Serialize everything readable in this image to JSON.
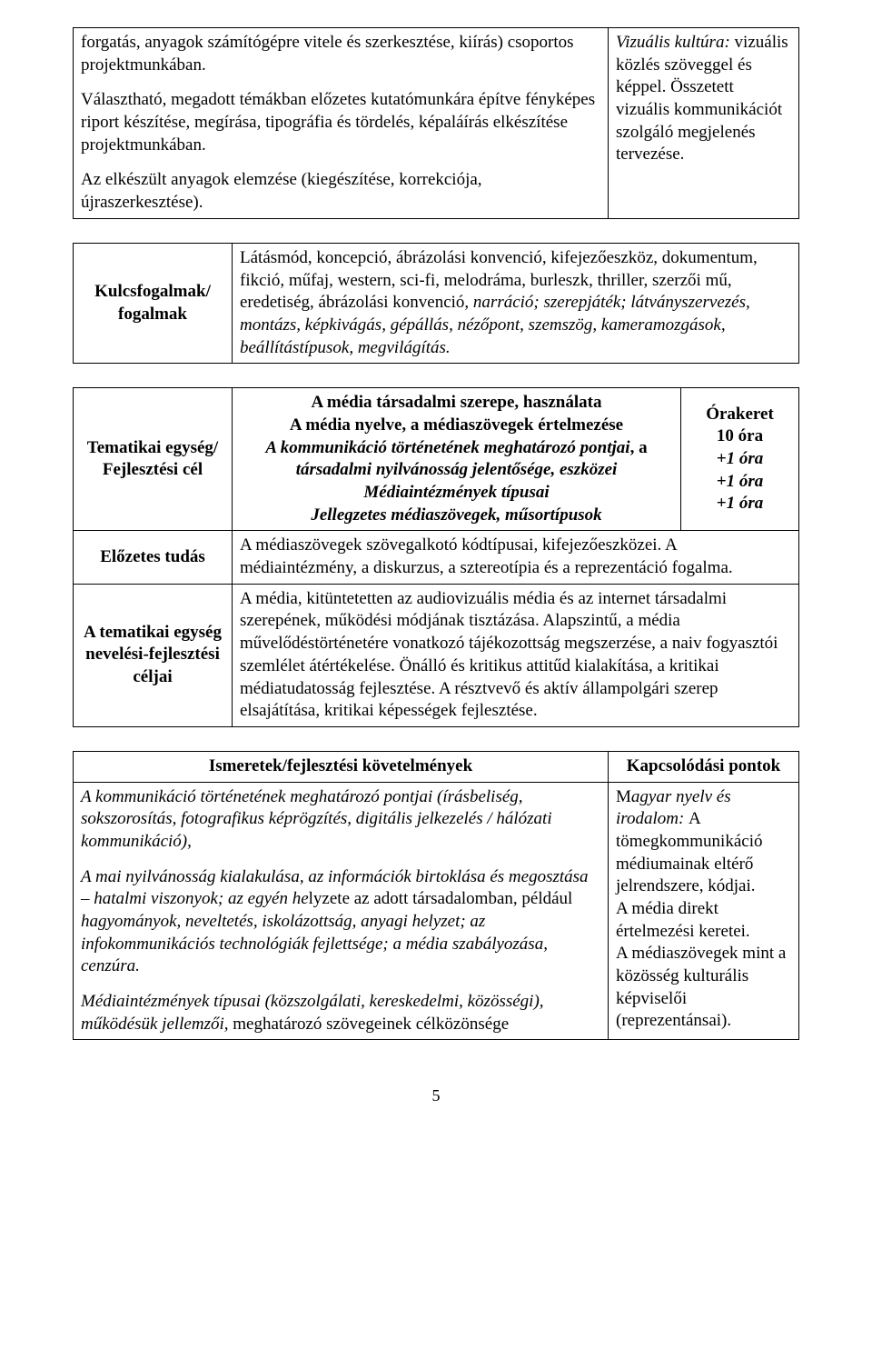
{
  "table1": {
    "left": {
      "p1": "forgatás, anyagok számítógépre vitele és szerkesztése, kiírás) csoportos projektmunkában.",
      "p2": "Választható, megadott témákban előzetes kutatómunkára építve fényképes riport készítése, megírása, tipográfia és tördelés, képaláírás elkészítése projektmunkában.",
      "p3": "Az elkészült anyagok elemzése (kiegészítése, korrekciója, újraszerkesztése)."
    },
    "right": {
      "p1a": "Vizuális kultúra:",
      "p1b": " vizuális közlés szöveggel és képpel. Összetett vizuális kommunikációt szolgáló megjelenés tervezése."
    }
  },
  "table2": {
    "label": "Kulcsfogalmak/ fogalmak",
    "content_a": "Látásmód, koncepció, ábrázolási konvenció, kifejezőeszköz, dokumentum, fikció, műfaj, western, sci-fi, melodráma, burleszk, thriller, szerzői mű, eredetiség, ábrázolási konvenció, ",
    "content_b": "narráció; szerepjáték; látványszervezés, montázs, képkivágás, gépállás, nézőpont, szemszög, kameramozgások, beállítástípusok, megvilágítás."
  },
  "table3": {
    "rows": [
      {
        "label": "Tematikai egység/ Fejlesztési cél",
        "mid": {
          "l1": "A média társadalmi szerepe, használata",
          "l2": "A média nyelve, a médiaszövegek értelmezése",
          "l3a": "A kommunikáció történetének meghatározó pontjai",
          "l3b": ", a ",
          "l3c": "társadalmi nyilvánosság jelentősége, eszközei",
          "l4": "Médiaintézmények típusai",
          "l5": "Jellegzetes médiaszövegek, műsortípusok"
        },
        "hours": {
          "h1": "Órakeret",
          "h2": "10 óra",
          "h3": "+1 óra",
          "h4": "+1 óra",
          "h5": "+1 óra"
        }
      },
      {
        "label": "Előzetes tudás",
        "content": "A médiaszövegek szövegalkotó kódtípusai, kifejezőeszközei. A médiaintézmény, a diskurzus, a sztereotípia és a reprezentáció fogalma."
      },
      {
        "label": "A tematikai egység nevelési-fejlesztési céljai",
        "content": "A média, kitüntetetten az audiovizuális média és az internet társadalmi szerepének, működési módjának tisztázása. Alapszintű, a média művelődéstörténetére vonatkozó tájékozottság megszerzése, a naiv fogyasztói szemlélet átértékelése. Önálló és kritikus attitűd kialakítása, a kritikai médiatudatosság fejlesztése. A résztvevő és aktív állampolgári szerep elsajátítása, kritikai képességek fejlesztése."
      }
    ]
  },
  "table4": {
    "headLeft": "Ismeretek/fejlesztési követelmények",
    "headRight": "Kapcsolódási pontok",
    "left": {
      "p1a": "A kommunikáció történetének meghatározó pontjai (írásbeliség, sokszorosítás, fotografikus képrögzítés, digitális jelkezelés / hálózati kommunikáció),",
      "p2a": "A mai nyilvánosság kialakulása, az információk birtoklása és megosztása – hatalmi viszonyok; az egyén he",
      "p2b": "lyzete az adott társadalomban, például ",
      "p2c": "hagyományok, neveltetés, iskolázottság, anyagi helyzet; az infokommunikációs technológiák fejlettsége; a média szabályozása, cenzúra.",
      "p3a": "Médiaintézmények típusai (közszolgálati, kereskedelmi, közösségi), működésük jellemzői,",
      "p3b": " meghatározó szövegeinek célközönsége"
    },
    "right": {
      "r1a": "M",
      "r1b": "agyar nyelv és irodalom: ",
      "r1c": "A tömegkommunikáció médiumainak eltérő jelrendszere, kódjai.",
      "r2": "A média direkt értelmezési keretei.",
      "r3": "A médiaszövegek mint a közösség kulturális képviselői (reprezentánsai)."
    }
  },
  "pageNumber": "5"
}
